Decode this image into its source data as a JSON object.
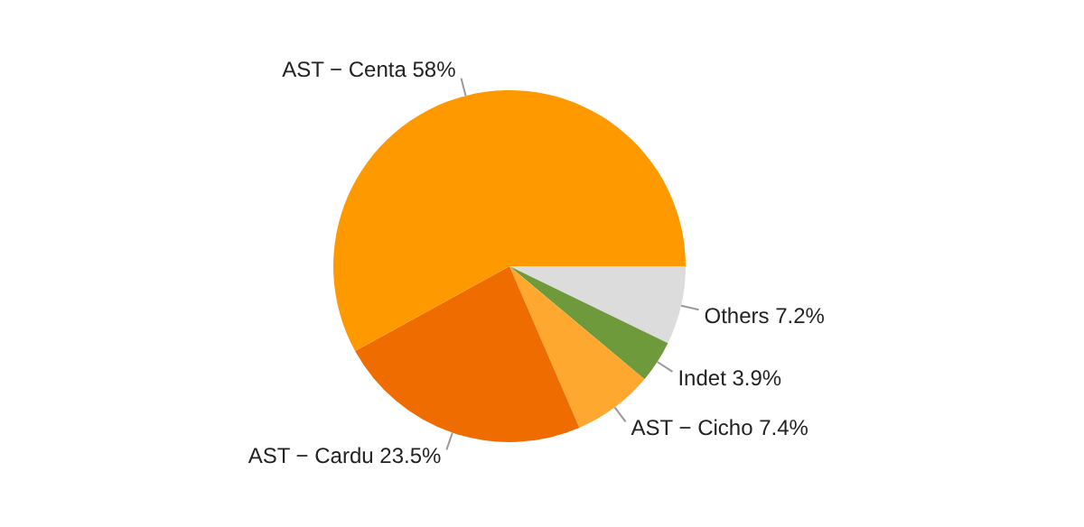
{
  "chart_data": {
    "type": "pie",
    "categories": [
      "Others",
      "Indet",
      "AST − Cicho",
      "AST − Cardu",
      "AST − Centa"
    ],
    "values": [
      7.2,
      3.9,
      7.4,
      23.5,
      58
    ],
    "value_labels": [
      "7.2%",
      "3.9%",
      "7.4%",
      "23.5%",
      "58%"
    ],
    "colors": [
      "#dcdcdc",
      "#6e9a3c",
      "#ffa830",
      "#ee6c00",
      "#ff9900"
    ],
    "legend": false
  }
}
